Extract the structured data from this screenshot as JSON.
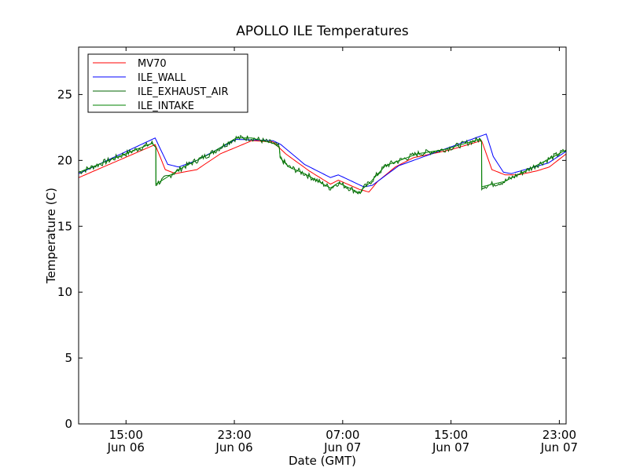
{
  "chart_data": {
    "type": "line",
    "title": "APOLLO ILE Temperatures",
    "xlabel": "Date (GMT)",
    "ylabel": "Temperature (C)",
    "x_units": "hours since Jun 06 00:00 GMT",
    "xlim": [
      11.5,
      47.5
    ],
    "ylim": [
      0,
      28.6
    ],
    "xticks": [
      {
        "value": 15,
        "label": "15:00",
        "sublabel": "Jun 06"
      },
      {
        "value": 23,
        "label": "23:00",
        "sublabel": "Jun 06"
      },
      {
        "value": 31,
        "label": "07:00",
        "sublabel": "Jun 07"
      },
      {
        "value": 39,
        "label": "15:00",
        "sublabel": "Jun 07"
      },
      {
        "value": 47,
        "label": "23:00",
        "sublabel": "Jun 07"
      }
    ],
    "yticks": [
      0,
      5,
      10,
      15,
      20,
      25
    ],
    "grid": false,
    "legend_position": "top-left",
    "series": [
      {
        "name": "MV70",
        "color": "#ff0000",
        "x": [
          11.52,
          17.15,
          17.9,
          18.65,
          20.23,
          21.97,
          24.29,
          25.86,
          26.79,
          28.53,
          30.1,
          30.68,
          32.24,
          32.94,
          33.58,
          34.88,
          36.21,
          38.94,
          41.26,
          42.02,
          43.0,
          43.94,
          45.33,
          46.26,
          47.52
        ],
        "y": [
          18.7,
          21.2,
          19.3,
          19.0,
          19.3,
          20.5,
          21.5,
          21.4,
          20.5,
          19.2,
          18.2,
          18.5,
          17.8,
          17.6,
          18.4,
          19.5,
          20.2,
          20.8,
          21.5,
          19.3,
          18.9,
          18.9,
          19.2,
          19.5,
          20.5
        ]
      },
      {
        "name": "ILE_WALL",
        "color": "#0000ff",
        "x": [
          11.52,
          17.15,
          18.08,
          18.89,
          20.23,
          23.13,
          25.86,
          26.44,
          28.18,
          30.1,
          30.68,
          32.54,
          33.18,
          35.15,
          41.6,
          42.12,
          42.87,
          43.45,
          46.18,
          47.52
        ],
        "y": [
          19.0,
          21.7,
          19.7,
          19.5,
          20.0,
          21.6,
          21.5,
          21.2,
          19.7,
          18.7,
          18.9,
          18.0,
          18.1,
          19.6,
          22.0,
          20.3,
          19.1,
          19.0,
          19.8,
          20.7
        ]
      },
      {
        "name": "ILE_EXHAUST_AIR",
        "color": "#006400",
        "noisy": true,
        "x": [
          11.52,
          16.92,
          17.2,
          17.21,
          19.24,
          21.21,
          23.13,
          24.29,
          25.86,
          26.32,
          26.38,
          27.02,
          28.18,
          30.1,
          30.68,
          32.3,
          32.42,
          33.0,
          34.16,
          36.5,
          38.4,
          41.1,
          41.26,
          41.27,
          42.95,
          45.85,
          47.52
        ],
        "y": [
          19.1,
          21.3,
          21.0,
          18.2,
          19.5,
          20.5,
          21.7,
          21.7,
          21.3,
          21.0,
          20.2,
          19.5,
          19.0,
          17.9,
          18.3,
          17.5,
          17.8,
          18.3,
          19.6,
          20.5,
          20.8,
          21.6,
          21.4,
          18.0,
          18.4,
          19.9,
          20.8
        ]
      },
      {
        "name": "ILE_INTAKE",
        "color": "#008000",
        "x": [
          11.52,
          16.92,
          17.2,
          17.21,
          19.24,
          21.21,
          23.13,
          24.29,
          25.86,
          26.32,
          26.38,
          27.02,
          28.18,
          30.1,
          30.68,
          32.3,
          32.42,
          33.0,
          34.16,
          36.5,
          38.4,
          41.1,
          41.26,
          41.27,
          42.95,
          45.85,
          47.52
        ],
        "y": [
          19.1,
          21.3,
          21.0,
          18.2,
          19.5,
          20.5,
          21.7,
          21.7,
          21.3,
          21.0,
          20.2,
          19.5,
          19.0,
          17.9,
          18.3,
          17.5,
          17.8,
          18.3,
          19.6,
          20.5,
          20.8,
          21.6,
          21.4,
          18.0,
          18.4,
          19.9,
          20.8
        ]
      }
    ]
  }
}
